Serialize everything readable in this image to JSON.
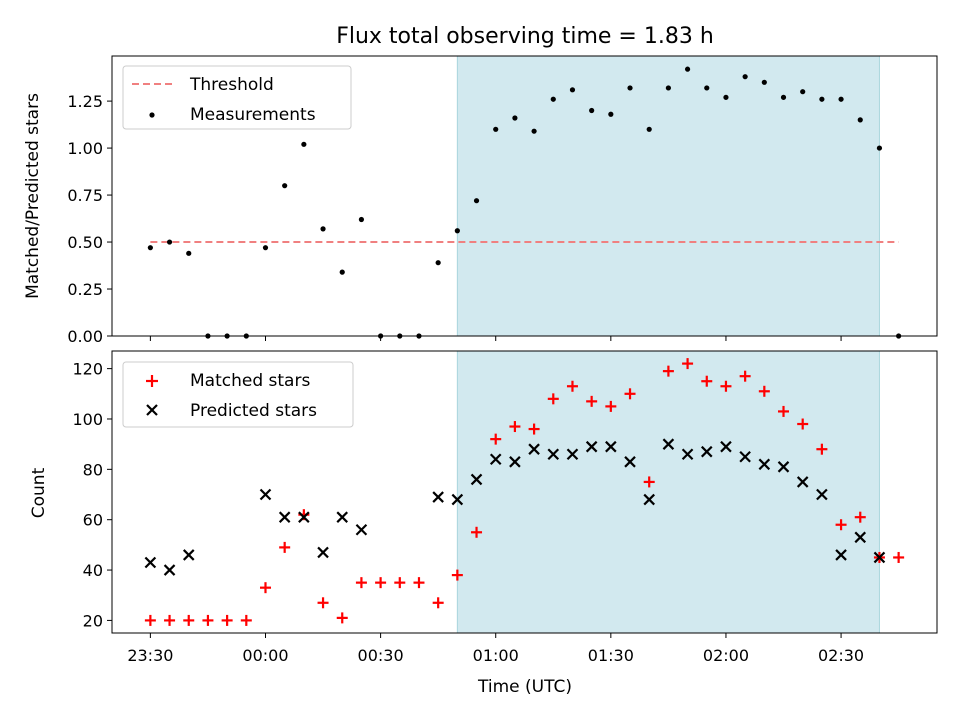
{
  "chart_data": {
    "type": "scatter",
    "title": "Flux total observing time = 1.83 h",
    "xlabel": "Time (UTC)",
    "x_ticks": [
      "23:30",
      "00:00",
      "00:30",
      "01:00",
      "01:30",
      "02:00",
      "02:30"
    ],
    "x_unit": "minutes after 23:30 UTC",
    "x_range": [
      -10,
      205
    ],
    "highlight": {
      "from": 80,
      "to": 190,
      "color": "#d2e9ef"
    },
    "panels": [
      {
        "id": "ratio",
        "ylabel": "Matched/Predicted stars",
        "ylim": [
          0,
          1.49
        ],
        "yticks": [
          "0.00",
          "0.25",
          "0.50",
          "0.75",
          "1.00",
          "1.25"
        ],
        "threshold": {
          "name": "Threshold",
          "value": 0.5,
          "x_from": 0,
          "x_to": 195,
          "color": "#f08080"
        },
        "series": [
          {
            "name": "Measurements",
            "color": "#000000",
            "marker": "dot",
            "x": [
              0,
              5,
              10,
              15,
              20,
              25,
              30,
              35,
              40,
              45,
              50,
              55,
              60,
              65,
              70,
              75,
              80,
              85,
              90,
              95,
              100,
              105,
              110,
              115,
              120,
              125,
              130,
              135,
              140,
              145,
              150,
              155,
              160,
              165,
              170,
              175,
              180,
              185,
              190,
              195
            ],
            "y": [
              0.47,
              0.5,
              0.44,
              0,
              0,
              0,
              0.47,
              0.8,
              1.02,
              0.57,
              0.34,
              0.62,
              0,
              0,
              0,
              0.39,
              0.56,
              0.72,
              1.1,
              1.16,
              1.09,
              1.26,
              1.31,
              1.2,
              1.18,
              1.32,
              1.1,
              1.32,
              1.42,
              1.32,
              1.27,
              1.38,
              1.35,
              1.27,
              1.3,
              1.26,
              1.26,
              1.15,
              1.0,
              0
            ]
          }
        ],
        "legend": [
          "Threshold",
          "Measurements"
        ]
      },
      {
        "id": "count",
        "ylabel": "Count",
        "ylim": [
          15,
          127
        ],
        "yticks": [
          "20",
          "40",
          "60",
          "80",
          "100",
          "120"
        ],
        "series": [
          {
            "name": "Matched stars",
            "color": "#ff0000",
            "marker": "plus",
            "x": [
              0,
              5,
              10,
              15,
              20,
              25,
              30,
              35,
              40,
              45,
              50,
              55,
              60,
              65,
              70,
              75,
              80,
              85,
              90,
              95,
              100,
              105,
              110,
              115,
              120,
              125,
              130,
              135,
              140,
              145,
              150,
              155,
              160,
              165,
              170,
              175,
              180,
              185,
              190,
              195
            ],
            "y": [
              20,
              20,
              20,
              20,
              20,
              20,
              33,
              49,
              62,
              27,
              21,
              35,
              35,
              35,
              35,
              27,
              38,
              55,
              92,
              97,
              96,
              108,
              113,
              107,
              105,
              110,
              75,
              119,
              122,
              115,
              113,
              117,
              111,
              103,
              98,
              88,
              58,
              61,
              45,
              45
            ]
          },
          {
            "name": "Predicted stars",
            "color": "#000000",
            "marker": "cross",
            "x": [
              0,
              5,
              10,
              30,
              35,
              40,
              45,
              50,
              55,
              75,
              80,
              85,
              90,
              95,
              100,
              105,
              110,
              115,
              120,
              125,
              130,
              135,
              140,
              145,
              150,
              155,
              160,
              165,
              170,
              175,
              180,
              185,
              190
            ],
            "y": [
              43,
              40,
              46,
              70,
              61,
              61,
              47,
              61,
              56,
              69,
              68,
              76,
              84,
              83,
              88,
              86,
              86,
              89,
              89,
              83,
              68,
              90,
              86,
              87,
              89,
              85,
              82,
              81,
              75,
              70,
              46,
              53,
              45
            ]
          }
        ],
        "legend": [
          "Matched stars",
          "Predicted stars"
        ]
      }
    ]
  }
}
